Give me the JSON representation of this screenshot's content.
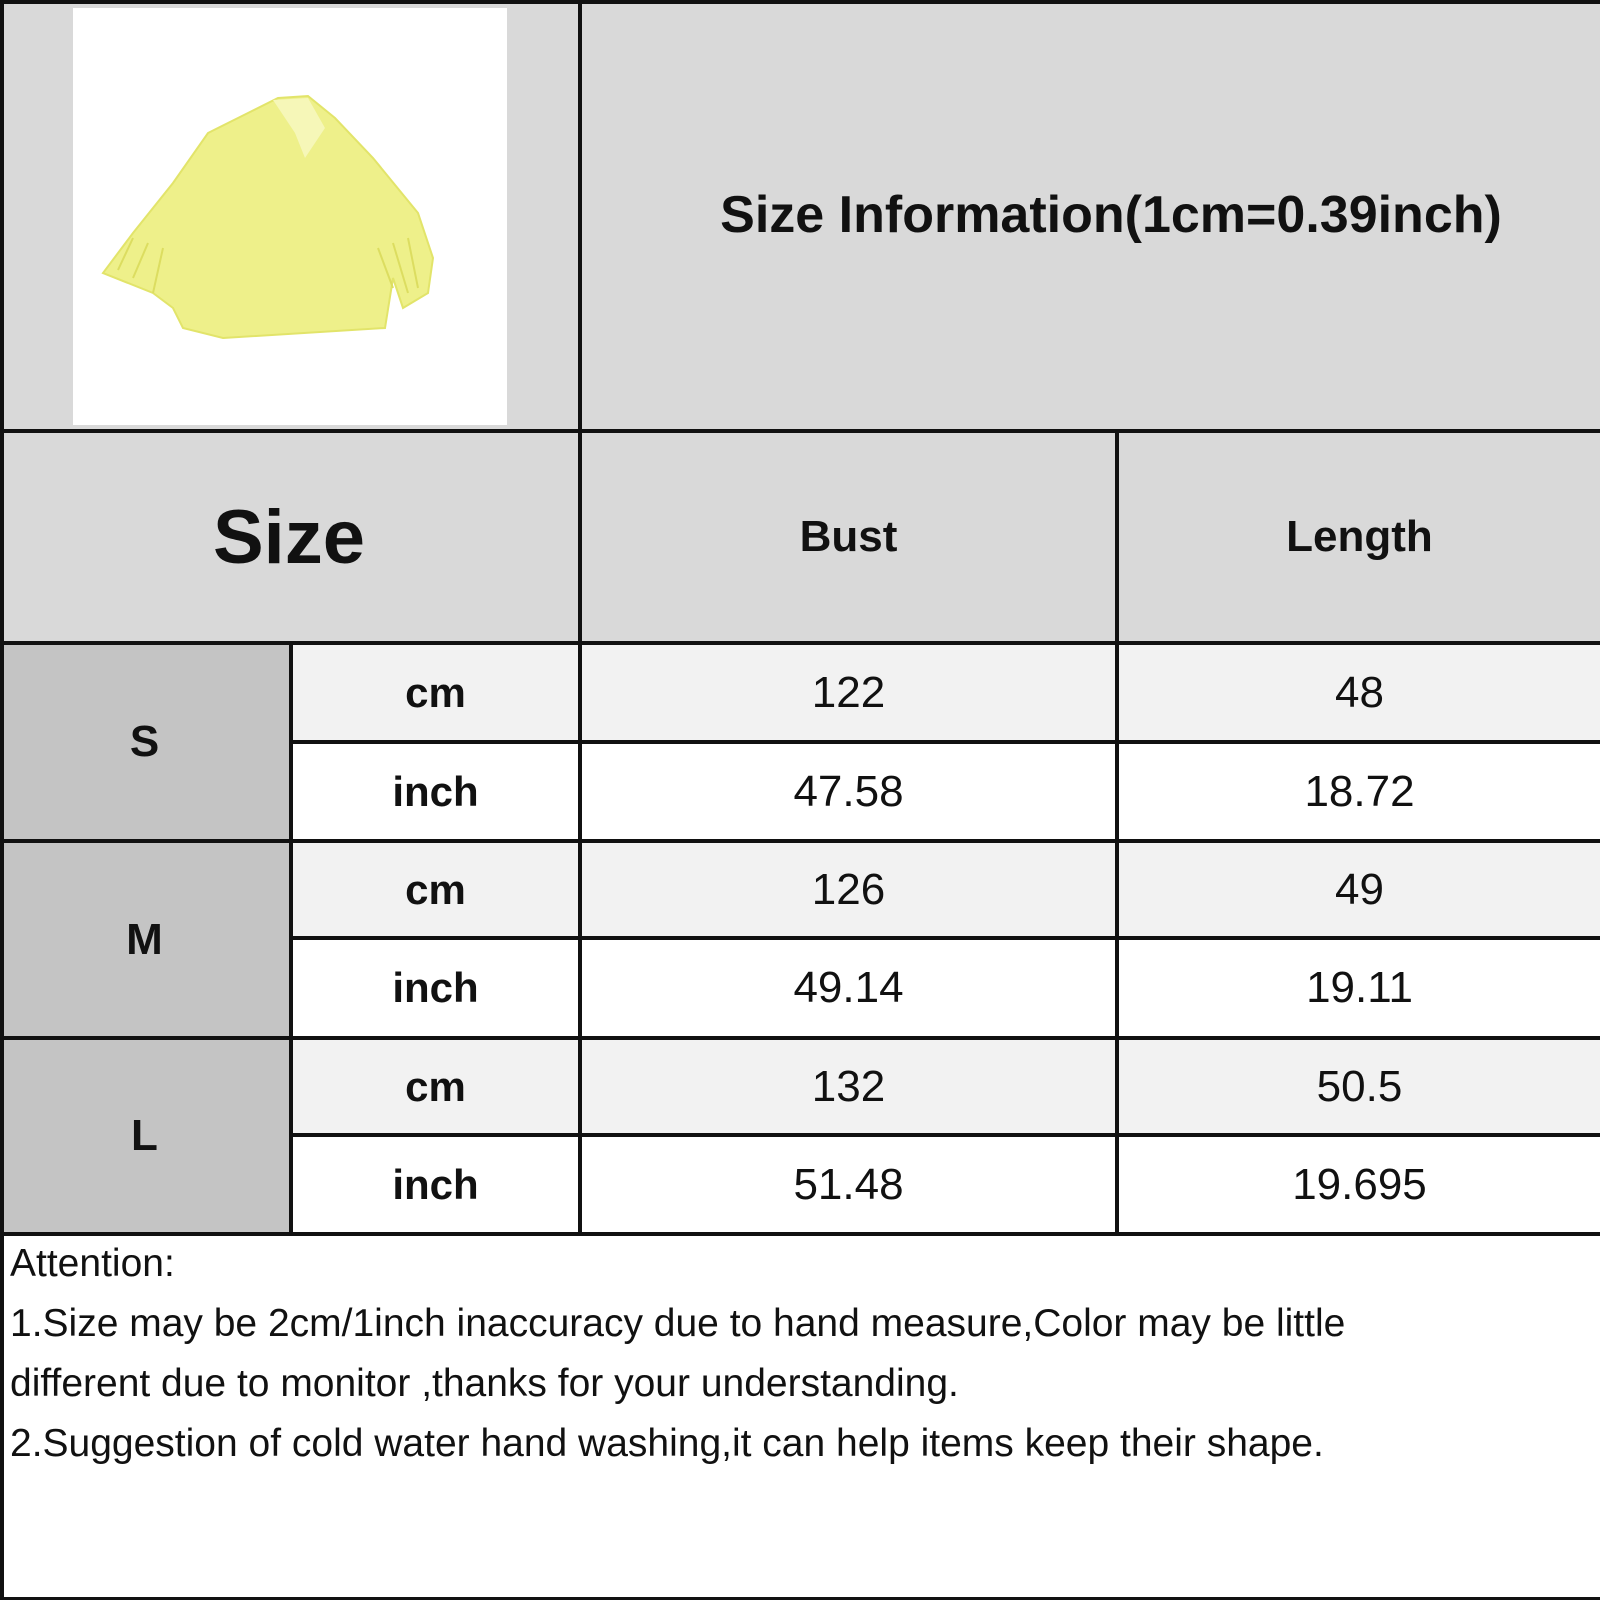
{
  "title": "Size Information(1cm=0.39inch)",
  "product_image": {
    "description_icon": "yellow-blouse-photo",
    "color": "#eef08a"
  },
  "headers": {
    "size": "Size",
    "bust": "Bust",
    "length": "Length"
  },
  "rows": [
    {
      "size": "S",
      "cm": {
        "unit": "cm",
        "bust": "122",
        "length": "48"
      },
      "inch": {
        "unit": "inch",
        "bust": "47.58",
        "length": "18.72"
      }
    },
    {
      "size": "M",
      "cm": {
        "unit": "cm",
        "bust": "126",
        "length": "49"
      },
      "inch": {
        "unit": "inch",
        "bust": "49.14",
        "length": "19.11"
      }
    },
    {
      "size": "L",
      "cm": {
        "unit": "cm",
        "bust": "132",
        "length": "50.5"
      },
      "inch": {
        "unit": "inch",
        "bust": "51.48",
        "length": "19.695"
      }
    }
  ],
  "notes": {
    "heading": "Attention:",
    "line1a": "1.Size may be 2cm/1inch inaccuracy due to hand measure,Color may be little",
    "line1b": "different due to monitor ,thanks for your understanding.",
    "line2": "2.Suggestion of cold water hand washing,it can help items keep their shape."
  },
  "colors": {
    "header_bg": "#d9d9d9",
    "size_bg": "#c4c4c4",
    "cm_row_bg": "#f2f2f2",
    "inch_row_bg": "#ffffff",
    "border": "#111111"
  }
}
